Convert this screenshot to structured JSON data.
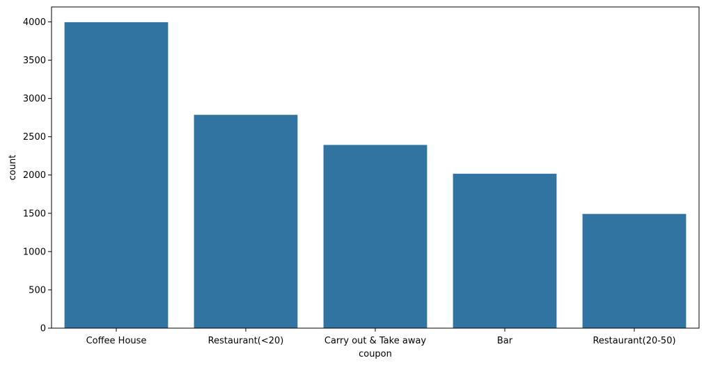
{
  "chart_data": {
    "type": "bar",
    "categories": [
      "Coffee House",
      "Restaurant(<20)",
      "Carry out & Take away",
      "Bar",
      "Restaurant(20-50)"
    ],
    "values": [
      3996,
      2786,
      2393,
      2017,
      1492
    ],
    "xlabel": "coupon",
    "ylabel": "count",
    "ylim": [
      0,
      4195
    ],
    "yticks": [
      0,
      500,
      1000,
      1500,
      2000,
      2500,
      3000,
      3500,
      4000
    ],
    "grid": false,
    "legend": "none",
    "bar_color": "#3274a1"
  }
}
